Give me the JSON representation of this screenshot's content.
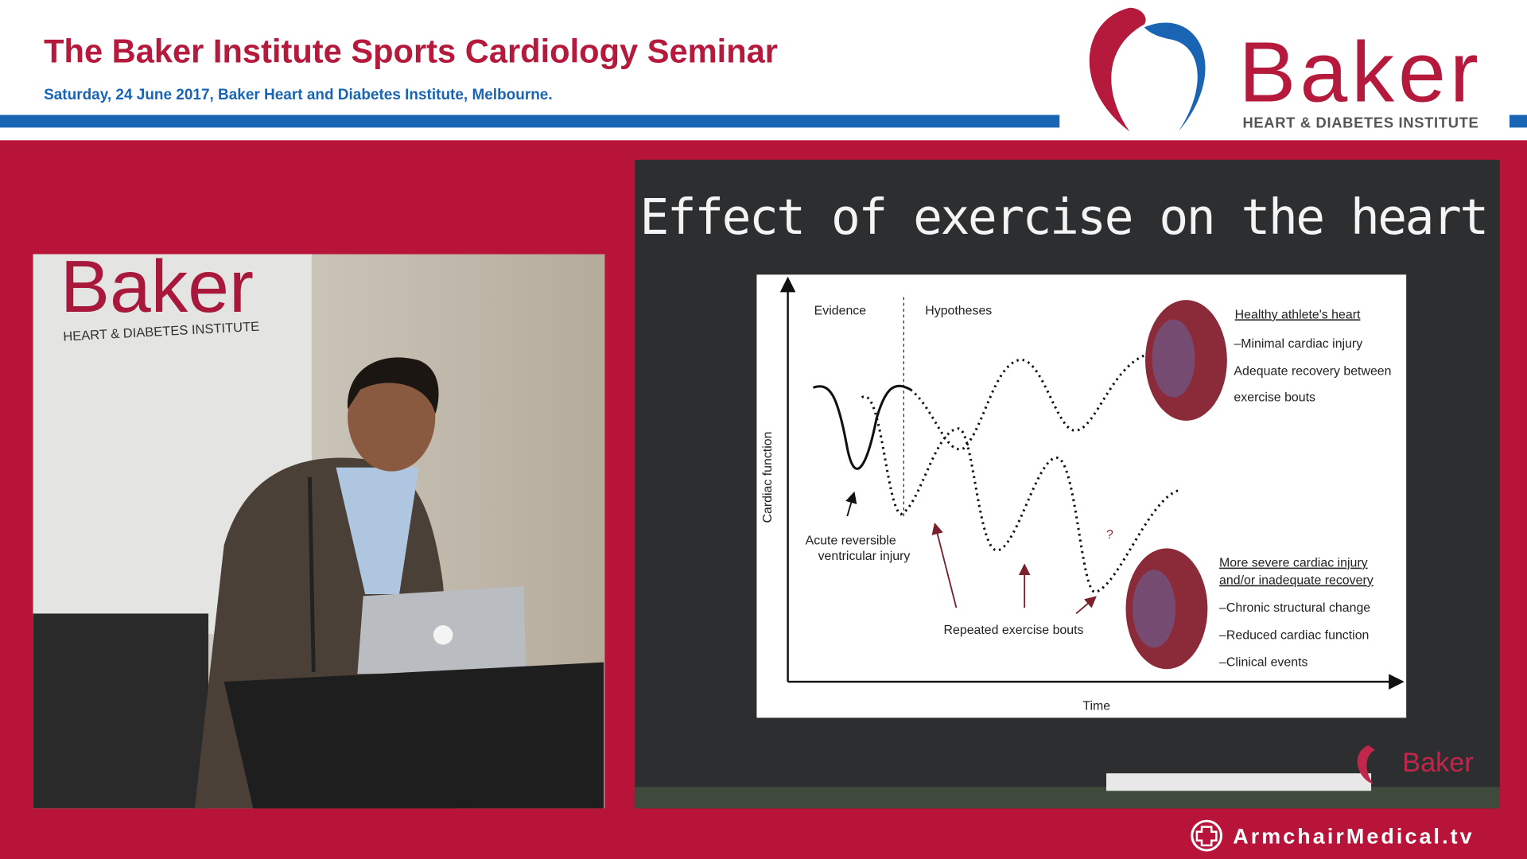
{
  "header": {
    "title": "The Baker Institute Sports Cardiology Seminar",
    "subtitle": "Saturday, 24 June 2017, Baker Heart and Diabetes Institute, Melbourne."
  },
  "logo": {
    "name": "Baker",
    "tagline": "HEART & DIABETES INSTITUTE"
  },
  "video": {
    "sign_name": "Baker",
    "sign_tagline": "HEART & DIABETES INSTITUTE"
  },
  "slide": {
    "title": "Effect of exercise on the heart",
    "figure": {
      "y_axis": "Cardiac function",
      "x_axis": "Time",
      "evidence": "Evidence",
      "hypotheses": "Hypotheses",
      "acute_label": [
        "Acute reversible",
        "ventricular injury"
      ],
      "question": "?",
      "repeated_label": "Repeated exercise bouts",
      "healthy": {
        "heading": "Healthy athlete's heart",
        "lines": [
          "–Minimal cardiac injury",
          "Adequate recovery between",
          "exercise bouts"
        ]
      },
      "severe": {
        "heading": [
          "More severe cardiac injury",
          "and/or inadequate recovery"
        ],
        "lines": [
          "–Chronic structural change",
          "–Reduced cardiac function",
          "–Clinical events"
        ]
      }
    },
    "logo": "Baker"
  },
  "watermark": "ArmchairMedical.tv"
}
